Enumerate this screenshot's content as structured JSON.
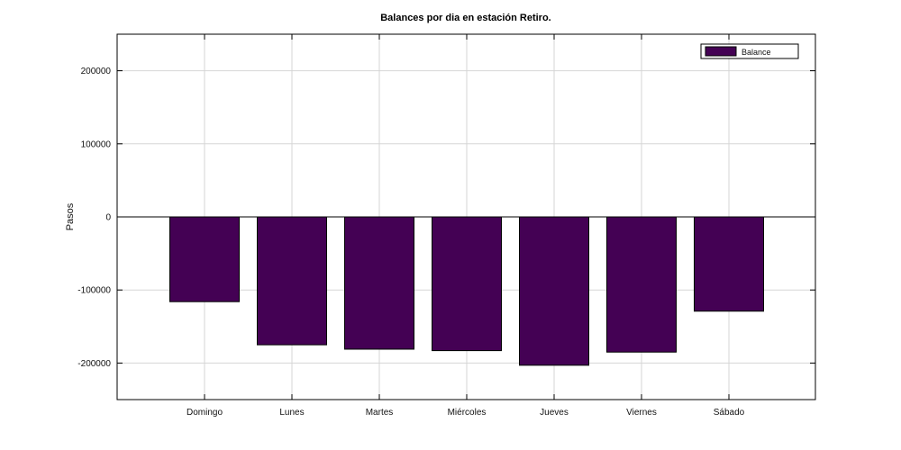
{
  "chart_data": {
    "type": "bar",
    "title": "Balances por dia en estación Retiro.",
    "xlabel": "",
    "ylabel": "Pasos",
    "categories": [
      "Domingo",
      "Lunes",
      "Martes",
      "Miércoles",
      "Jueves",
      "Viernes",
      "Sábado"
    ],
    "series": [
      {
        "name": "Balance",
        "values": [
          -116000,
          -175000,
          -181000,
          -183000,
          -203000,
          -185000,
          -129000
        ]
      }
    ],
    "ylim": [
      -250000,
      250000
    ],
    "yticks": [
      -200000,
      -100000,
      0,
      100000,
      200000
    ],
    "ytick_labels": [
      "-200000",
      "-100000",
      "0",
      "100000",
      "200000"
    ],
    "grid": true,
    "legend_position": "top-right",
    "colors": {
      "bar": "#440154"
    }
  }
}
